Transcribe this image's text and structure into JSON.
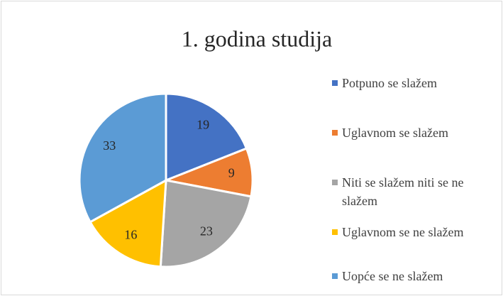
{
  "chart_data": {
    "type": "pie",
    "title": "1. godina studija",
    "categories": [
      "Potpuno se slažem",
      "Uglavnom se slažem",
      "Niti se slažem niti se ne slažem",
      "Uglavnom se ne slažem",
      "Uopće se ne slažem"
    ],
    "values": [
      19,
      9,
      23,
      16,
      33
    ],
    "colors": [
      "#4472c4",
      "#ed7d31",
      "#a5a5a5",
      "#ffc000",
      "#5b9bd5"
    ],
    "legend": "right"
  }
}
